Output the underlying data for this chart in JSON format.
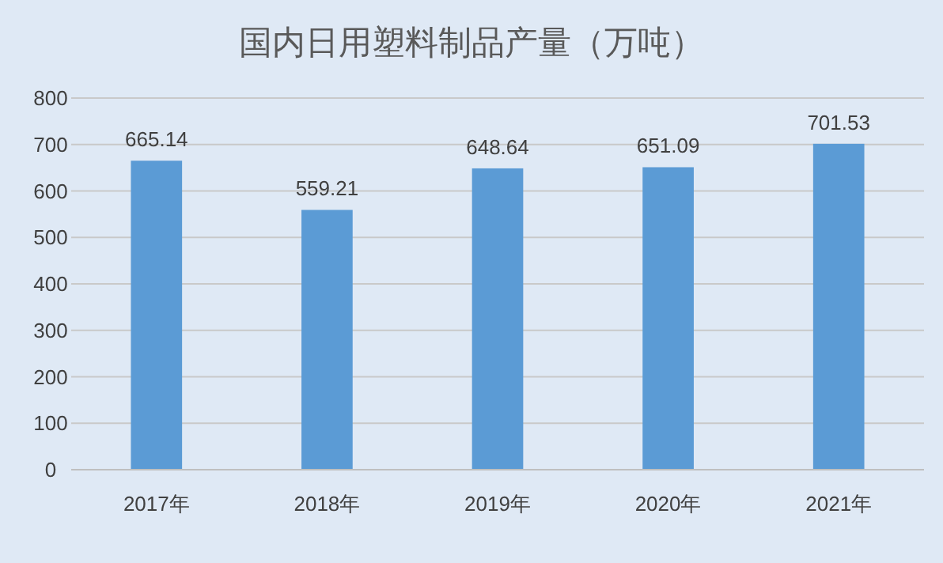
{
  "chart_data": {
    "type": "bar",
    "title": "国内日用塑料制品产量（万吨）",
    "categories": [
      "2017年",
      "2018年",
      "2019年",
      "2020年",
      "2021年"
    ],
    "values": [
      665.14,
      559.21,
      648.64,
      651.09,
      701.53
    ],
    "color": "#5b9bd5",
    "ylim": [
      0,
      800
    ],
    "yticks": [
      0,
      100,
      200,
      300,
      400,
      500,
      600,
      700,
      800
    ],
    "grid": "y",
    "data_labels": true
  }
}
